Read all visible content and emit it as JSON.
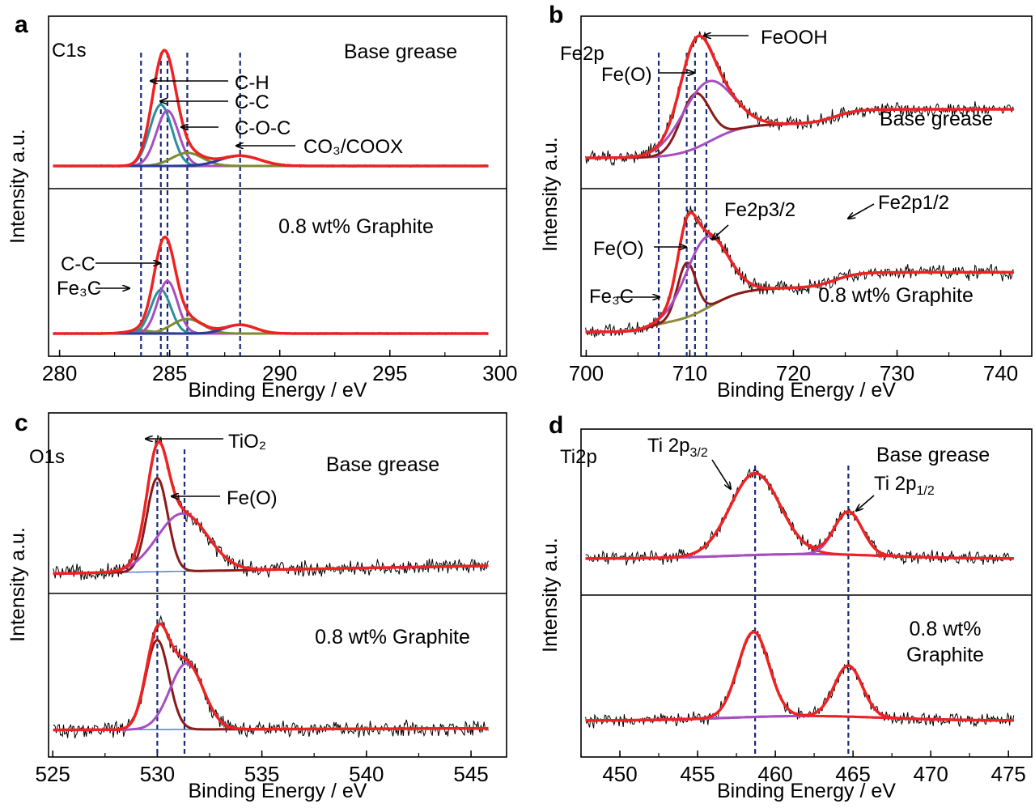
{
  "colors": {
    "raw": "#000000",
    "envelope": "#ee2222",
    "ch": "#2a8f9e",
    "cc": "#a64fc0",
    "coc": "#7e8a2e",
    "co3": "#2a3a9e",
    "background": "#2f5fd0",
    "feo": "#8b1a1a",
    "feooh": "#a64fc0",
    "olive_bg": "#8a8a3a",
    "ref_line": "#1a2a7a"
  },
  "chart_data": [
    {
      "type": "line",
      "panel_letter": "a",
      "element_label": "C1s",
      "xlabel": "Binding Energy / eV",
      "ylabel": "Intensity a.u.",
      "xlim": [
        279.5,
        300.3
      ],
      "x_ticks": [
        "280",
        "285",
        "290",
        "295",
        "300"
      ],
      "x_tick_values": [
        280,
        285,
        290,
        295,
        300
      ],
      "reference_lines": [
        283.7,
        284.6,
        284.9,
        285.8,
        288.2
      ],
      "subpanels": [
        {
          "label": "Base grease",
          "baseline": 0.05,
          "peaks": [
            {
              "component": "C-H",
              "center": 284.6,
              "height": 0.42,
              "width": 0.5,
              "color": "ch"
            },
            {
              "component": "C-C",
              "center": 284.9,
              "height": 0.38,
              "width": 0.5,
              "color": "cc"
            },
            {
              "component": "C-O-C",
              "center": 285.8,
              "height": 0.09,
              "width": 0.7,
              "color": "coc"
            },
            {
              "component": "CO3/COOX",
              "center": 288.2,
              "height": 0.07,
              "width": 0.9,
              "color": "co3"
            }
          ],
          "annotations": [
            {
              "text": "C-H",
              "x": 284.6
            },
            {
              "text": "C-C",
              "x": 284.9
            },
            {
              "text": "C-O-C",
              "x": 285.8
            },
            {
              "text": "CO₃/COOX",
              "x": 288.2
            }
          ]
        },
        {
          "label": "0.8 wt% Graphite",
          "baseline": 0.05,
          "peaks": [
            {
              "component": "Fe3C",
              "center": 283.7,
              "height": 0.02,
              "width": 0.6,
              "color": "coc"
            },
            {
              "component": "C-H",
              "center": 284.6,
              "height": 0.3,
              "width": 0.45,
              "color": "ch"
            },
            {
              "component": "C-C",
              "center": 284.9,
              "height": 0.36,
              "width": 0.45,
              "color": "cc"
            },
            {
              "component": "C-O-C",
              "center": 285.8,
              "height": 0.1,
              "width": 0.7,
              "color": "coc"
            },
            {
              "component": "CO3/COOX",
              "center": 288.2,
              "height": 0.06,
              "width": 0.7,
              "color": "co3"
            }
          ],
          "annotations": [
            {
              "text": "C-C",
              "x": 284.9
            },
            {
              "text": "Fe₃C",
              "x": 283.7
            }
          ]
        }
      ]
    },
    {
      "type": "line",
      "panel_letter": "b",
      "element_label": "Fe2p",
      "xlabel": "Binding Energy / eV",
      "ylabel": "Intensity a.u.",
      "xlim": [
        699.5,
        743.0
      ],
      "x_ticks": [
        "700",
        "710",
        "720",
        "730",
        "740"
      ],
      "x_tick_values": [
        700,
        710,
        720,
        730,
        740
      ],
      "reference_lines": [
        707.0,
        709.7,
        710.5,
        711.6
      ],
      "subpanels": [
        {
          "label": "Base grease",
          "peaks": [
            {
              "component": "Fe(O)",
              "center": 710.5,
              "height": 0.45,
              "width": 1.4,
              "color": "feo"
            },
            {
              "component": "FeOOH",
              "center": 711.6,
              "height": 0.5,
              "width": 2.4,
              "color": "feooh"
            }
          ],
          "annotations": [
            {
              "text": "FeOOH",
              "x": 711.6
            },
            {
              "text": "Fe(O)",
              "x": 710.5
            }
          ]
        },
        {
          "label": "0.8 wt% Graphite",
          "peaks": [
            {
              "component": "Fe(O)",
              "center": 709.7,
              "height": 0.42,
              "width": 0.9,
              "color": "feo"
            },
            {
              "component": "Fe2p3/2",
              "center": 711.6,
              "height": 0.55,
              "width": 2.0,
              "color": "feooh"
            }
          ],
          "annotations": [
            {
              "text": "Fe2p3/2",
              "x": 711.6
            },
            {
              "text": "Fe2p1/2",
              "x": 725.0
            },
            {
              "text": "Fe(O)",
              "x": 709.7
            },
            {
              "text": "Fe₃C",
              "x": 707.0
            }
          ]
        }
      ]
    },
    {
      "type": "line",
      "panel_letter": "c",
      "element_label": "O1s",
      "xlabel": "Binding Energy / eV",
      "ylabel": "Intensity a.u.",
      "xlim": [
        524.8,
        546.7
      ],
      "x_ticks": [
        "525",
        "530",
        "535",
        "540",
        "545"
      ],
      "x_tick_values": [
        525,
        530,
        535,
        540,
        545
      ],
      "reference_lines": [
        530.0,
        531.3
      ],
      "subpanels": [
        {
          "label": "Base grease",
          "peaks": [
            {
              "component": "TiO2",
              "center": 530.0,
              "height": 0.68,
              "width": 0.5,
              "color": "feo"
            },
            {
              "component": "Fe(O)",
              "center": 531.2,
              "height": 0.42,
              "width": 1.2,
              "color": "feooh"
            }
          ],
          "annotations": [
            {
              "text": "TiO₂",
              "x": 530.0
            },
            {
              "text": "Fe(O)",
              "x": 531.3
            }
          ]
        },
        {
          "label": "0.8 wt% Graphite",
          "peaks": [
            {
              "component": "TiO2",
              "center": 530.0,
              "height": 0.65,
              "width": 0.55,
              "color": "feo"
            },
            {
              "component": "Fe(O)",
              "center": 531.4,
              "height": 0.48,
              "width": 0.8,
              "color": "feooh"
            }
          ],
          "annotations": []
        }
      ]
    },
    {
      "type": "line",
      "panel_letter": "d",
      "element_label": "Ti2p",
      "xlabel": "Binding Energy / eV",
      "ylabel": "Intensity a.u.",
      "xlim": [
        447.5,
        476.5
      ],
      "x_ticks": [
        "450",
        "455",
        "460",
        "465",
        "470",
        "475"
      ],
      "x_tick_values": [
        450,
        455,
        460,
        465,
        470,
        475
      ],
      "reference_lines": [
        458.7,
        464.7
      ],
      "subpanels": [
        {
          "label": "Base grease",
          "peaks": [
            {
              "component": "Ti 2p3/2",
              "center": 458.7,
              "height": 0.72,
              "width": 1.6,
              "color": "envelope"
            },
            {
              "component": "Ti 2p1/2",
              "center": 464.7,
              "height": 0.38,
              "width": 0.9,
              "color": "cc"
            }
          ],
          "annotations": [
            {
              "text": "Ti 2p",
              "sub": "3/2",
              "x": 458.7
            },
            {
              "text": "Ti 2p",
              "sub": "1/2",
              "x": 464.7
            }
          ]
        },
        {
          "label_lines": [
            "0.8 wt%",
            "Graphite"
          ],
          "peaks": [
            {
              "component": "Ti 2p3/2",
              "center": 458.6,
              "height": 0.75,
              "width": 1.0,
              "color": "envelope"
            },
            {
              "component": "Ti 2p1/2",
              "center": 464.7,
              "height": 0.45,
              "width": 0.9,
              "color": "cc"
            }
          ],
          "annotations": []
        }
      ]
    }
  ]
}
